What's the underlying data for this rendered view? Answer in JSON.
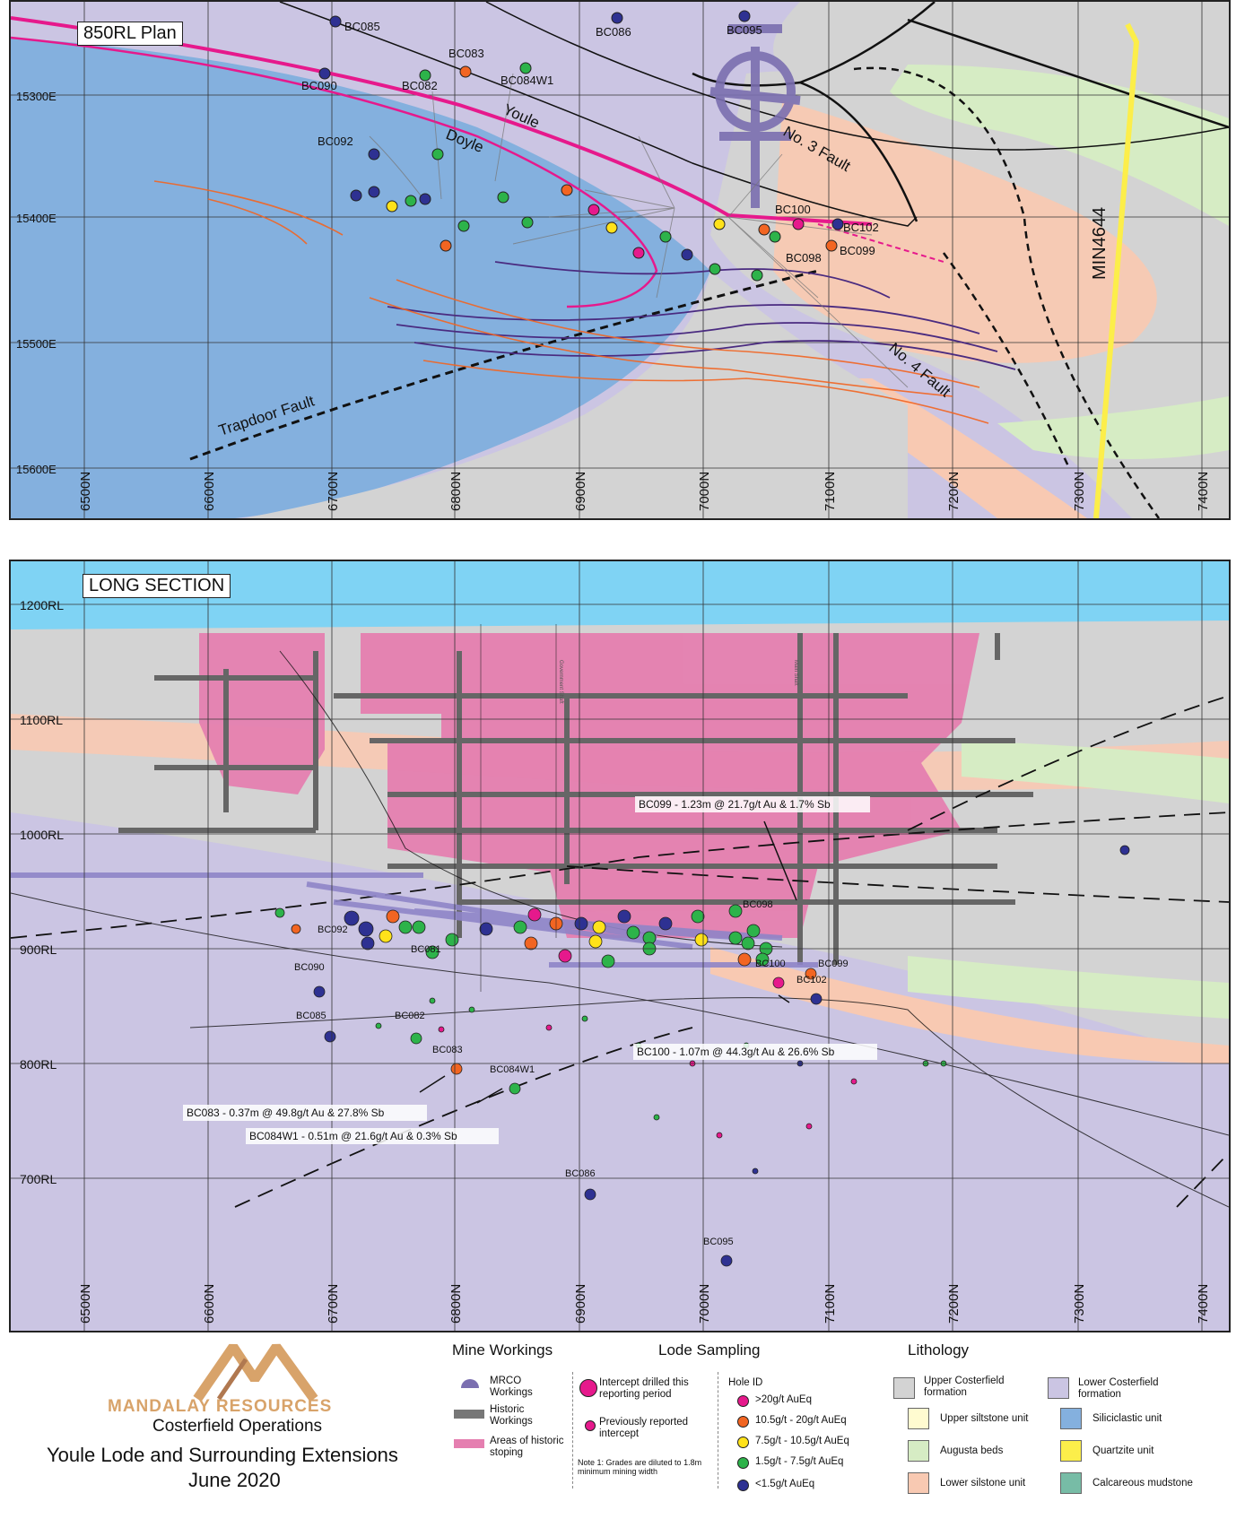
{
  "plan": {
    "title": "850RL Plan",
    "easting_labels": [
      "15300E",
      "15400E",
      "15500E",
      "15600E"
    ],
    "northing_labels": [
      "6500N",
      "6600N",
      "6700N",
      "6800N",
      "6900N",
      "7000N",
      "7100N",
      "7200N",
      "7300N",
      "7400N"
    ],
    "features": {
      "youle": "Youle",
      "doyle": "Doyle",
      "fault3": "No. 3 Fault",
      "fault4": "No. 4 Fault",
      "trapdoor": "Trapdoor Fault",
      "min": "MIN4644"
    },
    "holes": {
      "bc085": "BC085",
      "bc086": "BC086",
      "bc095": "BC095",
      "bc083": "BC083",
      "bc084w1": "BC084W1",
      "bc090": "BC090",
      "bc082": "BC082",
      "bc092": "BC092",
      "bc100": "BC100",
      "bc102": "BC102",
      "bc099": "BC099",
      "bc098": "BC098"
    }
  },
  "longsec": {
    "title": "LONG SECTION",
    "rl_labels": [
      "1200RL",
      "1100RL",
      "1000RL",
      "900RL",
      "800RL",
      "700RL"
    ],
    "northing_labels": [
      "6500N",
      "6600N",
      "6700N",
      "6800N",
      "6900N",
      "7000N",
      "7100N",
      "7200N",
      "7300N",
      "7400N"
    ],
    "holes": {
      "bc098": "BC098",
      "bc092": "BC092",
      "bc081": "BC081",
      "bc090": "BC090",
      "bc085": "BC085",
      "bc082": "BC082",
      "bc083": "BC083",
      "bc084w1": "BC084W1",
      "bc086": "BC086",
      "bc095": "BC095",
      "bc100": "BC100",
      "bc099": "BC099",
      "bc102": "BC102"
    },
    "callouts": {
      "bc099": "BC099 - 1.23m @ 21.7g/t Au & 1.7% Sb",
      "bc100": "BC100 - 1.07m @ 44.3g/t Au & 26.6% Sb",
      "bc083": "BC083 - 0.37m @ 49.8g/t Au & 27.8% Sb",
      "bc084w1": "BC084W1 - 0.51m @ 21.6g/t Au & 0.3% Sb"
    },
    "shafts": [
      "Main Shaft",
      "Government Shaft"
    ]
  },
  "legend": {
    "mine_workings": {
      "title": "Mine Workings",
      "mrco": "MRCO Workings",
      "historic": "Historic Workings",
      "stoping": "Areas of historic stoping"
    },
    "lode_sampling": {
      "title": "Lode Sampling",
      "new": "Intercept drilled this reporting period",
      "prev": "Previously reported intercept",
      "hole_id_title": "Hole ID",
      "grades": [
        {
          "label": ">20g/t AuEq",
          "color": "#e6198c"
        },
        {
          "label": "10.5g/t - 20g/t AuEq",
          "color": "#f26522"
        },
        {
          "label": "7.5g/t - 10.5g/t AuEq",
          "color": "#ffe21a"
        },
        {
          "label": "1.5g/t - 7.5g/t AuEq",
          "color": "#2db34a"
        },
        {
          "label": "<1.5g/t AuEq",
          "color": "#2e3192"
        }
      ],
      "note": "Note 1: Grades are diluted to 1.8m minimum mining width"
    },
    "lithology": {
      "title": "Lithology",
      "items": [
        {
          "label": "Upper Costerfield formation",
          "color": "#d3d3d3"
        },
        {
          "label": "Upper siltstone unit",
          "color": "#fffbd0"
        },
        {
          "label": "Augusta beds",
          "color": "#d6ecc4"
        },
        {
          "label": "Lower silstone unit",
          "color": "#f8c9b2"
        },
        {
          "label": "Lower Costerfield formation",
          "color": "#cbc5e3"
        },
        {
          "label": "Siliciclastic unit",
          "color": "#84b0de"
        },
        {
          "label": "Quartzite unit",
          "color": "#fcee4a"
        },
        {
          "label": "Calcareous mudstone",
          "color": "#77bca6"
        }
      ]
    }
  },
  "brand": {
    "company": "MANDALAY RESOURCES",
    "operation": "Costerfield Operations",
    "caption_line1": "Youle Lode and Surrounding Extensions",
    "caption_line2": "June 2020"
  }
}
